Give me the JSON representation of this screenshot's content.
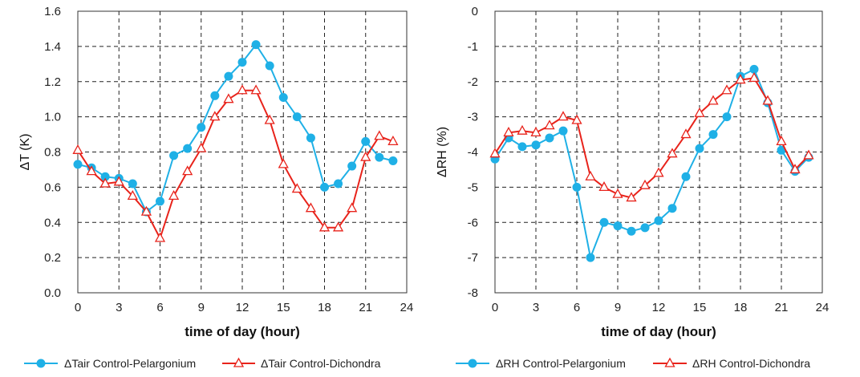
{
  "chart_data": [
    {
      "type": "line",
      "ylabel": "ΔT (K)",
      "xlabel": "time of day (hour)",
      "xlim": [
        0,
        24
      ],
      "ylim": [
        0,
        1.6
      ],
      "xticks": [
        "0",
        "3",
        "6",
        "9",
        "12",
        "15",
        "18",
        "21",
        "24"
      ],
      "yticks": [
        "0.0",
        "0.2",
        "0.4",
        "0.6",
        "0.8",
        "1.0",
        "1.2",
        "1.4",
        "1.6"
      ],
      "grid": true,
      "legend_position": "bottom",
      "series": [
        {
          "name": "ΔTair Control-Pelargonium",
          "color": "#1fb0e6",
          "marker": "circle",
          "x": [
            0,
            1,
            2,
            3,
            4,
            5,
            6,
            7,
            8,
            9,
            10,
            11,
            12,
            13,
            14,
            15,
            16,
            17,
            18,
            19,
            20,
            21,
            22,
            23
          ],
          "y": [
            0.73,
            0.71,
            0.66,
            0.65,
            0.62,
            0.46,
            0.52,
            0.78,
            0.82,
            0.94,
            1.12,
            1.23,
            1.31,
            1.41,
            1.29,
            1.11,
            1.0,
            0.88,
            0.6,
            0.62,
            0.72,
            0.86,
            0.77,
            0.75
          ]
        },
        {
          "name": "ΔTair Control-Dichondra",
          "color": "#e8231b",
          "marker": "triangle",
          "x": [
            0,
            1,
            2,
            3,
            4,
            5,
            6,
            7,
            8,
            9,
            10,
            11,
            12,
            13,
            14,
            15,
            16,
            17,
            18,
            19,
            20,
            21,
            22,
            23
          ],
          "y": [
            0.81,
            0.69,
            0.62,
            0.63,
            0.55,
            0.46,
            0.31,
            0.55,
            0.69,
            0.82,
            1.0,
            1.1,
            1.15,
            1.15,
            0.98,
            0.73,
            0.59,
            0.48,
            0.37,
            0.37,
            0.48,
            0.77,
            0.89,
            0.86
          ]
        }
      ]
    },
    {
      "type": "line",
      "ylabel": "ΔRH (%)",
      "xlabel": "time of day (hour)",
      "xlim": [
        0,
        24
      ],
      "ylim": [
        -8,
        0
      ],
      "xticks": [
        "0",
        "3",
        "6",
        "9",
        "12",
        "15",
        "18",
        "21",
        "24"
      ],
      "yticks": [
        "-8",
        "-7",
        "-6",
        "-5",
        "-4",
        "-3",
        "-2",
        "-1",
        "0"
      ],
      "grid": true,
      "legend_position": "bottom",
      "series": [
        {
          "name": "ΔRH Control-Pelargonium",
          "color": "#1fb0e6",
          "marker": "circle",
          "x": [
            0,
            1,
            2,
            3,
            4,
            5,
            6,
            7,
            8,
            9,
            10,
            11,
            12,
            13,
            14,
            15,
            16,
            17,
            18,
            19,
            20,
            21,
            22,
            23
          ],
          "y": [
            -4.2,
            -3.6,
            -3.85,
            -3.8,
            -3.6,
            -3.4,
            -5.0,
            -7.0,
            -6.0,
            -6.1,
            -6.25,
            -6.15,
            -5.95,
            -5.6,
            -4.7,
            -3.9,
            -3.5,
            -3.0,
            -1.85,
            -1.65,
            -2.6,
            -3.95,
            -4.55,
            -4.15
          ]
        },
        {
          "name": "ΔRH Control-Dichondra",
          "color": "#e8231b",
          "marker": "triangle",
          "x": [
            0,
            1,
            2,
            3,
            4,
            5,
            6,
            7,
            8,
            9,
            10,
            11,
            12,
            13,
            14,
            15,
            16,
            17,
            18,
            19,
            20,
            21,
            22,
            23
          ],
          "y": [
            -4.05,
            -3.45,
            -3.4,
            -3.45,
            -3.25,
            -3.0,
            -3.1,
            -4.7,
            -5.0,
            -5.2,
            -5.3,
            -4.95,
            -4.6,
            -4.05,
            -3.5,
            -2.9,
            -2.55,
            -2.25,
            -1.95,
            -1.9,
            -2.55,
            -3.7,
            -4.5,
            -4.1
          ]
        }
      ]
    }
  ]
}
